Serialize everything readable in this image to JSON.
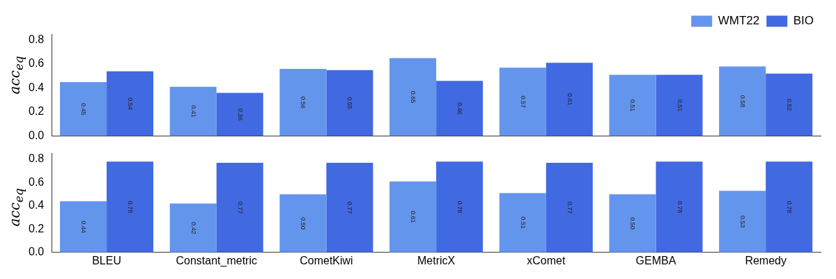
{
  "chart_data": [
    {
      "type": "bar",
      "ylabel": "acc$_{eq}$",
      "categories": [
        null,
        null,
        null,
        null,
        null,
        null,
        null
      ],
      "series": [
        {
          "name": "WMT22",
          "color": "#6495ed",
          "values": [
            0.45,
            0.41,
            0.56,
            0.65,
            0.57,
            0.51,
            0.58
          ],
          "value_labels": [
            "0.45",
            "0.41",
            "0.56",
            "0.65",
            "0.57",
            "0.51",
            "0.58"
          ]
        },
        {
          "name": "BIO",
          "color": "#4169e1",
          "values": [
            0.54,
            0.36,
            0.55,
            0.46,
            0.61,
            0.51,
            0.52
          ],
          "value_labels": [
            "0.54",
            "0.36",
            "0.55",
            "0.46",
            "0.61",
            "0.51",
            "0.52"
          ]
        }
      ],
      "ylim": [
        0,
        0.85
      ],
      "yticks": [
        {
          "value": 0,
          "label": "0.0"
        },
        0.2,
        0.4,
        0.6,
        0.8
      ],
      "legend": "top right",
      "tick_labels": "y"
    },
    {
      "type": "bar",
      "ylabel": "acc$_{eq}$",
      "categories": [
        "BLEU",
        "Constant_metric",
        "CometKiwi",
        "MetricX",
        "xComet",
        "GEMBA",
        "Remedy"
      ],
      "series": [
        {
          "color": "#6495ed",
          "values": [
            0.44,
            0.42,
            0.5,
            0.61,
            0.51,
            0.5,
            0.53
          ],
          "value_labels": [
            "0.44",
            "0.42",
            "0.50",
            "0.61",
            "0.51",
            "0.50",
            "0.53"
          ]
        },
        {
          "color": "#4169e1",
          "values": [
            0.78,
            0.77,
            0.77,
            0.78,
            0.77,
            0.78,
            0.78
          ],
          "value_labels": [
            "0.78",
            "0.77",
            "0.77",
            "0.78",
            "0.77",
            "0.78",
            "0.78"
          ]
        }
      ],
      "ylim": [
        0,
        0.85
      ],
      "yticks": [
        {
          "value": 0,
          "label": "0.0"
        },
        0.2,
        0.4,
        0.6,
        0.8
      ]
    }
  ]
}
